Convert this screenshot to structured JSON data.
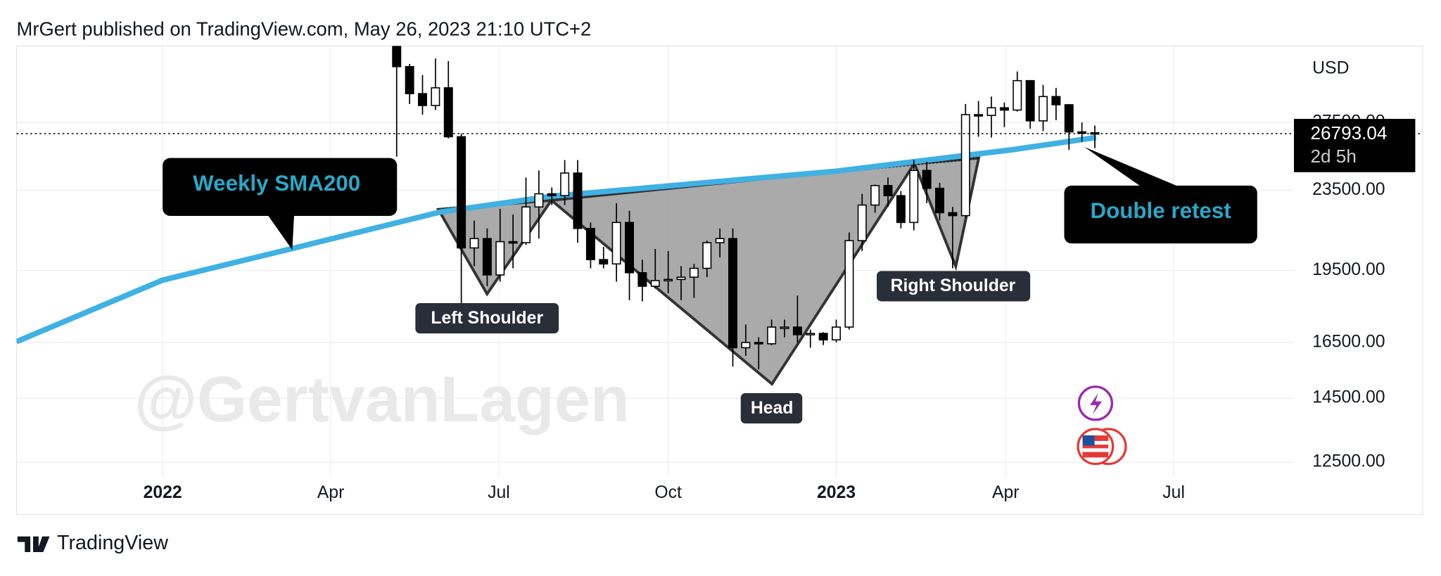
{
  "header": "MrGert published on TradingView.com, May 26, 2023 21:10 UTC+2",
  "footer": "TradingView",
  "watermark": "@GertvanLagen",
  "chart_data": {
    "type": "candlestick",
    "currency": "USD",
    "log_scale": true,
    "grid": true,
    "xlim": [
      0,
      98.8
    ],
    "xticks": [
      {
        "value": 11.3,
        "label": "2022"
      },
      {
        "value": 24.3,
        "label": "Apr"
      },
      {
        "value": 37.3,
        "label": "Jul"
      },
      {
        "value": 50.4,
        "label": "Oct"
      },
      {
        "value": 63.4,
        "label": "2023"
      },
      {
        "value": 76.5,
        "label": "Apr"
      },
      {
        "value": 89.5,
        "label": "Jul"
      }
    ],
    "ylim": [
      12447,
      32840
    ],
    "yticks": [
      {
        "value": 12500,
        "label": "12500.00"
      },
      {
        "value": 14500,
        "label": "14500.00"
      },
      {
        "value": 16500,
        "label": "16500.00"
      },
      {
        "value": 19500,
        "label": "19500.00"
      },
      {
        "value": 23500,
        "label": "23500.00"
      },
      {
        "value": 27500,
        "label": "27500.00"
      }
    ],
    "up_color": "#ffffff",
    "down_color": "#000000",
    "x": [
      29.4,
      30.4,
      31.4,
      32.4,
      33.4,
      34.4,
      35.4,
      36.4,
      37.4,
      38.4,
      39.4,
      40.4,
      41.4,
      42.4,
      43.4,
      44.4,
      45.4,
      46.4,
      47.4,
      48.4,
      49.4,
      50.4,
      51.4,
      52.4,
      53.4,
      54.4,
      55.4,
      56.4,
      57.4,
      58.4,
      59.4,
      60.4,
      61.4,
      62.4,
      63.4,
      64.4,
      65.4,
      66.4,
      67.4,
      68.4,
      69.4,
      70.4,
      71.4,
      72.4,
      73.4,
      74.4,
      75.4,
      76.4,
      77.4,
      78.4,
      79.4,
      80.4,
      81.4,
      82.4,
      83.4
    ],
    "open": [
      34000,
      31300,
      29400,
      28600,
      29800,
      26600,
      20550,
      21000,
      19300,
      20850,
      20800,
      22600,
      23300,
      23200,
      24450,
      21500,
      20000,
      19800,
      21800,
      19400,
      18800,
      19050,
      19100,
      19200,
      19600,
      20800,
      21000,
      16300,
      16500,
      16450,
      17100,
      17100,
      16800,
      16850,
      16600,
      17100,
      20900,
      22700,
      23750,
      23200,
      21800,
      24600,
      23600,
      22300,
      22150,
      28000,
      27950,
      28450,
      28300,
      30300,
      27600,
      29200,
      28650,
      26900,
      26850
    ],
    "high": [
      34300,
      31500,
      30700,
      31900,
      31700,
      26800,
      21900,
      21500,
      22500,
      22200,
      24200,
      24600,
      23650,
      25200,
      25200,
      21800,
      20600,
      22800,
      22400,
      20000,
      20500,
      20400,
      19700,
      19800,
      20900,
      21500,
      21500,
      17200,
      16700,
      17400,
      17400,
      18400,
      17000,
      16900,
      17400,
      21300,
      23300,
      23800,
      24200,
      23450,
      25200,
      25100,
      23900,
      22600,
      28700,
      28900,
      29200,
      28800,
      30950,
      30300,
      30000,
      29800,
      28700,
      27500,
      27300
    ],
    "low": [
      25400,
      28700,
      28000,
      28300,
      26500,
      17600,
      19700,
      18800,
      19000,
      19600,
      20700,
      21000,
      22700,
      22700,
      20800,
      19600,
      19600,
      19000,
      18200,
      18150,
      18700,
      18500,
      18200,
      18300,
      19200,
      20100,
      15600,
      16000,
      15500,
      16400,
      16700,
      16500,
      16300,
      16400,
      16500,
      17000,
      20400,
      22300,
      22600,
      21500,
      21400,
      22800,
      21900,
      19600,
      22050,
      26600,
      26550,
      27200,
      28200,
      27100,
      26950,
      27650,
      25800,
      26300,
      25900
    ],
    "close": [
      31300,
      29400,
      28600,
      29800,
      26600,
      20550,
      21000,
      19300,
      20850,
      20800,
      22600,
      23300,
      23200,
      24450,
      21500,
      20000,
      19800,
      21800,
      19400,
      18800,
      19050,
      19100,
      19200,
      19600,
      20800,
      21000,
      16300,
      16500,
      16450,
      17100,
      17100,
      16800,
      16850,
      16600,
      17100,
      20900,
      22700,
      23750,
      23200,
      21800,
      24600,
      23600,
      22300,
      22150,
      28000,
      27950,
      28450,
      28300,
      30300,
      27600,
      29200,
      28650,
      26900,
      26850,
      26793.04
    ],
    "sma": {
      "name": "Weekly SMA200",
      "color": "#3fb1e3",
      "x": [
        0,
        11.3,
        21.5,
        32.8,
        41.4,
        63.4,
        69.8,
        76.9,
        83.5
      ],
      "values": [
        16530,
        19070,
        20550,
        22340,
        23170,
        24560,
        25140,
        25800,
        26550
      ]
    },
    "last_price": 26793.04,
    "countdown": "2d 5h",
    "annotations": [
      "Double retest",
      "Left Shoulder",
      "Head",
      "Right Shoulder"
    ]
  }
}
